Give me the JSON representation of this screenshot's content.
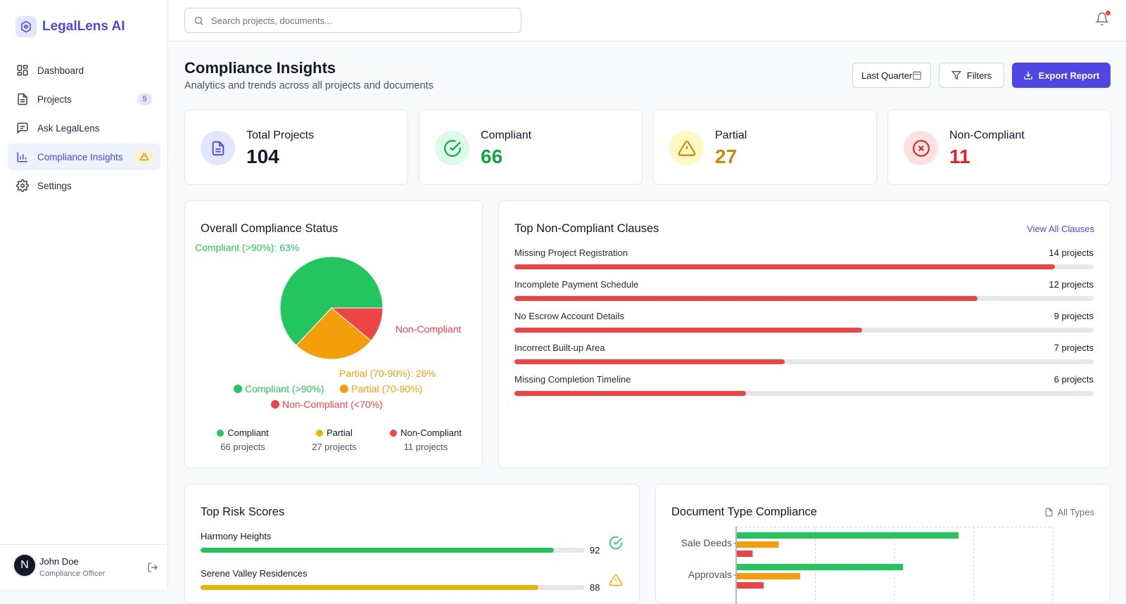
{
  "app": {
    "name": "LegalLens AI"
  },
  "sidebar": {
    "items": [
      {
        "label": "Dashboard",
        "icon": "dashboard-icon"
      },
      {
        "label": "Projects",
        "icon": "document-icon",
        "badge": "5"
      },
      {
        "label": "Ask LegalLens",
        "icon": "chat-icon"
      },
      {
        "label": "Compliance Insights",
        "icon": "bar-chart-icon",
        "active": true
      },
      {
        "label": "Settings",
        "icon": "gear-icon"
      }
    ]
  },
  "user": {
    "initial": "N",
    "name": "John Doe",
    "role": "Compliance Officer"
  },
  "search": {
    "placeholder": "Search projects, documents..."
  },
  "header": {
    "title": "Compliance Insights",
    "subtitle": "Analytics and trends across all projects and documents",
    "period": "Last Quarter",
    "filters_label": "Filters",
    "export_label": "Export Report"
  },
  "stats": [
    {
      "label": "Total Projects",
      "value": "104",
      "color": "#111827"
    },
    {
      "label": "Compliant",
      "value": "66",
      "color": "#16a34a"
    },
    {
      "label": "Partial",
      "value": "27",
      "color": "#ca8a04"
    },
    {
      "label": "Non-Compliant",
      "value": "11",
      "color": "#dc2626"
    }
  ],
  "compliance_status": {
    "title": "Overall Compliance Status",
    "labels": {
      "compliant": "Compliant (>90%): 63%",
      "non_compliant": "Non-Compliant",
      "partial": "Partial (70-90%): 26%"
    },
    "legend": [
      "Compliant (>90%)",
      "Partial (70-90%)",
      "Non-Compliant (<70%)"
    ],
    "summary": [
      {
        "name": "Compliant",
        "count": "66 projects",
        "color": "#22c55e"
      },
      {
        "name": "Partial",
        "count": "27 projects",
        "color": "#f59e0b"
      },
      {
        "name": "Non-Compliant",
        "count": "11 projects",
        "color": "#ef4444"
      }
    ]
  },
  "clauses": {
    "title": "Top Non-Compliant Clauses",
    "link": "View All Clauses",
    "items": [
      {
        "name": "Missing Project Registration",
        "count": "14 projects",
        "projects": 14
      },
      {
        "name": "Incomplete Payment Schedule",
        "count": "12 projects",
        "projects": 12
      },
      {
        "name": "No Escrow Account Details",
        "count": "9 projects",
        "projects": 9
      },
      {
        "name": "Incorrect Built-up Area",
        "count": "7 projects",
        "projects": 7
      },
      {
        "name": "Missing Completion Timeline",
        "count": "6 projects",
        "projects": 6
      }
    ],
    "max": 15
  },
  "risk": {
    "title": "Top Risk Scores",
    "items": [
      {
        "name": "Harmony Heights",
        "score": "92",
        "value": 92,
        "color": "#22c55e",
        "icon": "check-circle-icon"
      },
      {
        "name": "Serene Valley Residences",
        "score": "88",
        "value": 88,
        "color": "#eab308",
        "icon": "warning-icon"
      }
    ]
  },
  "doc_types": {
    "title": "Document Type Compliance",
    "filter": "All Types"
  },
  "chart_data": [
    {
      "type": "pie",
      "title": "Overall Compliance Status",
      "categories": [
        "Compliant (>90%)",
        "Partial (70-90%)",
        "Non-Compliant (<70%)"
      ],
      "values": [
        63,
        26,
        11
      ],
      "colors": [
        "#22c55e",
        "#f59e0b",
        "#ef4444"
      ]
    },
    {
      "type": "bar",
      "orientation": "horizontal",
      "title": "Document Type Compliance",
      "categories": [
        "Sale Deeds",
        "Approvals"
      ],
      "series": [
        {
          "name": "Compliant",
          "values": [
            28,
            21
          ],
          "color": "#22c55e"
        },
        {
          "name": "Partial",
          "values": [
            5.3,
            8
          ],
          "color": "#f59e0b"
        },
        {
          "name": "Non-Compliant",
          "values": [
            2,
            3.4
          ],
          "color": "#ef4444"
        }
      ],
      "xlim": [
        0,
        40
      ],
      "grid": true
    }
  ]
}
